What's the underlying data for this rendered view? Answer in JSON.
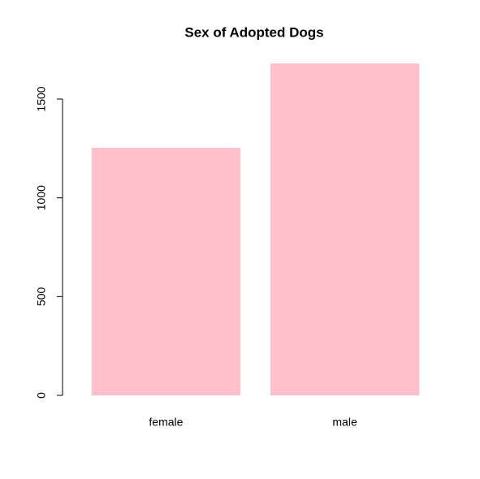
{
  "chart_data": {
    "type": "bar",
    "title": "Sex of Adopted Dogs",
    "categories": [
      "female",
      "male"
    ],
    "values": [
      1253,
      1680
    ],
    "color": "#ffc0cb",
    "ylim": [
      0,
      1500
    ],
    "yticks": [
      0,
      500,
      1000,
      1500
    ],
    "grid": false
  }
}
